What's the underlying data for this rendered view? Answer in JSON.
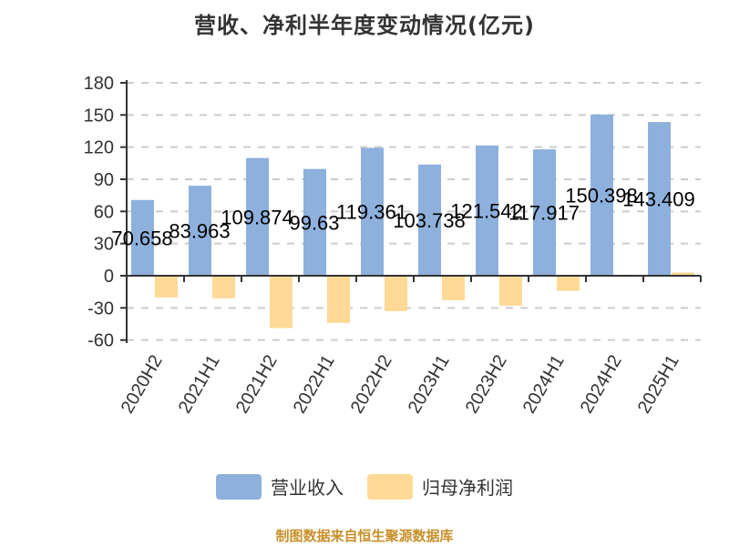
{
  "title": "营收、净利半年度变动情况(亿元)",
  "legend": [
    {
      "label": "营业收入",
      "color": "#8eb0dc"
    },
    {
      "label": "归母净利润",
      "color": "#ffd995"
    }
  ],
  "footer": "制图数据来自恒生聚源数据库",
  "chart_data": {
    "type": "bar",
    "title": "营收、净利半年度变动情况(亿元)",
    "xlabel": "",
    "ylabel": "",
    "ylim": [
      -60,
      180
    ],
    "yticks": [
      180,
      150,
      120,
      90,
      60,
      30,
      0,
      -30,
      -60
    ],
    "grid": true,
    "legend_position": "bottom",
    "categories": [
      "2020H2",
      "2021H1",
      "2021H2",
      "2022H1",
      "2022H2",
      "2023H1",
      "2023H2",
      "2024H1",
      "2024H2",
      "2025H1"
    ],
    "series": [
      {
        "name": "营业收入",
        "color": "#8eb0dc",
        "values": [
          70.658,
          83.963,
          109.874,
          99.63,
          119.361,
          103.738,
          121.542,
          117.917,
          150.398,
          143.409
        ],
        "labels": [
          "70.658",
          "83.963",
          "109.874",
          "99.63",
          "119.361",
          "103.738",
          "121.542",
          "117.917",
          "150.398",
          "143.409"
        ]
      },
      {
        "name": "归母净利润",
        "color": "#ffd995",
        "values": [
          -20.3,
          -21.0,
          -48.8,
          -44.0,
          -33.0,
          -22.8,
          -27.9,
          -14.1,
          1.0,
          3.0
        ]
      }
    ]
  }
}
